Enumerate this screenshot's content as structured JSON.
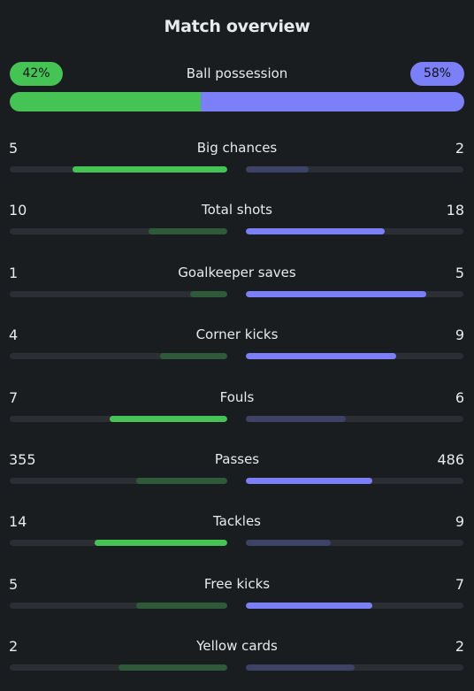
{
  "title": "Match overview",
  "possession": {
    "label": "Ball possession",
    "home_text": "42%",
    "away_text": "58%",
    "home": 42,
    "away": 58
  },
  "colors": {
    "home_strong": "#45c455",
    "home_weak": "#2f5a3a",
    "away_strong": "#7b7ff8",
    "away_weak": "#3d4266",
    "track": "#2b2f33"
  },
  "stats": [
    {
      "label": "Big chances",
      "home": "5",
      "away": "2",
      "home_val": 5,
      "away_val": 2,
      "home_share": 0.71,
      "away_share": 0.29
    },
    {
      "label": "Total shots",
      "home": "10",
      "away": "18",
      "home_val": 10,
      "away_val": 18,
      "home_share": 0.36,
      "away_share": 0.64
    },
    {
      "label": "Goalkeeper saves",
      "home": "1",
      "away": "5",
      "home_val": 1,
      "away_val": 5,
      "home_share": 0.17,
      "away_share": 0.83
    },
    {
      "label": "Corner kicks",
      "home": "4",
      "away": "9",
      "home_val": 4,
      "away_val": 9,
      "home_share": 0.31,
      "away_share": 0.69
    },
    {
      "label": "Fouls",
      "home": "7",
      "away": "6",
      "home_val": 7,
      "away_val": 6,
      "home_share": 0.54,
      "away_share": 0.46
    },
    {
      "label": "Passes",
      "home": "355",
      "away": "486",
      "home_val": 355,
      "away_val": 486,
      "home_share": 0.42,
      "away_share": 0.58
    },
    {
      "label": "Tackles",
      "home": "14",
      "away": "9",
      "home_val": 14,
      "away_val": 9,
      "home_share": 0.61,
      "away_share": 0.39
    },
    {
      "label": "Free kicks",
      "home": "5",
      "away": "7",
      "home_val": 5,
      "away_val": 7,
      "home_share": 0.42,
      "away_share": 0.58
    },
    {
      "label": "Yellow cards",
      "home": "2",
      "away": "2",
      "home_val": 2,
      "away_val": 2,
      "home_share": 0.5,
      "away_share": 0.5
    }
  ]
}
